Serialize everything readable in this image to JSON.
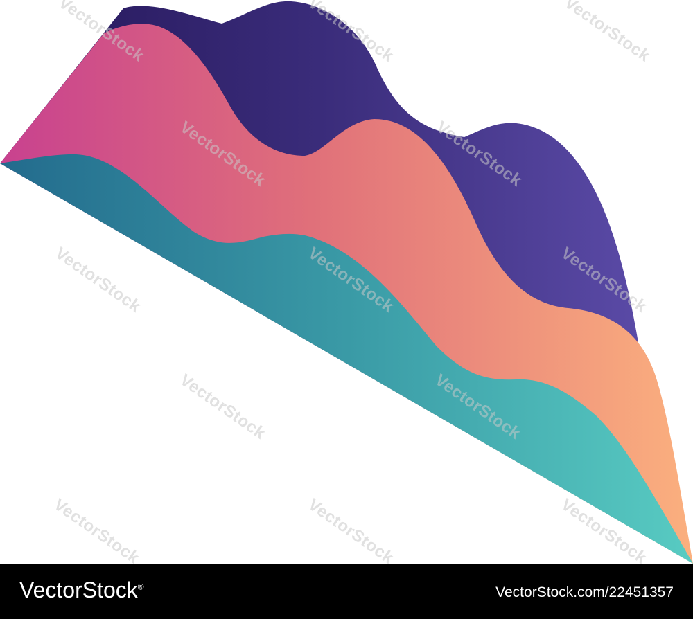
{
  "illustration": {
    "icon": "isometric-layered-wave-chart-icon",
    "layers": [
      {
        "name": "back-layer",
        "gradient": [
          "#2b1b5a",
          "#5a4ba8"
        ]
      },
      {
        "name": "middle-layer",
        "gradient": [
          "#c8418f",
          "#fab080"
        ]
      },
      {
        "name": "front-layer",
        "gradient": [
          "#236f8f",
          "#56c9c0"
        ]
      }
    ]
  },
  "watermark": {
    "text": "VectorStock"
  },
  "footer": {
    "brand": "VectorStock",
    "brand_mark": "®",
    "image_id": "VectorStock.com/22451357",
    "background": "#000000",
    "text_color": "#ffffff"
  }
}
